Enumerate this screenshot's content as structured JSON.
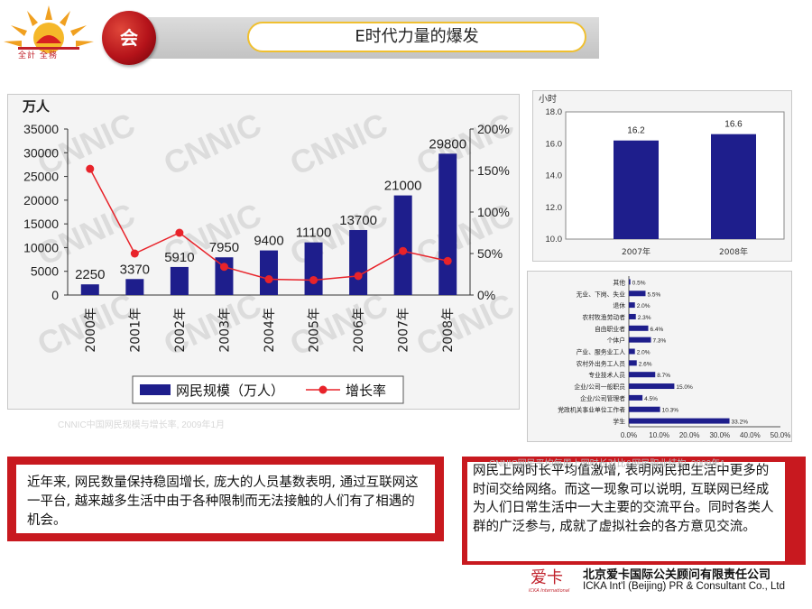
{
  "header": {
    "logo_text": "全計 全務",
    "circle_label": "会",
    "title": "E时代力量的爆发"
  },
  "captions": {
    "chart1": "CNNIC中国网民规模与增长率, 2009年1月",
    "chart23": "CNNIC网民平均每周上网时长对比&网民职业结构, 2009年1"
  },
  "text": {
    "left": "近年来, 网民数量保持稳固增长, 庞大的人员基数表明, 通过互联网这一平台, 越来越多生活中由于各种限制而无法接触的人们有了相遇的机会。",
    "right": "网民上网时长平均值激增, 表明网民把生活中更多的时间交给网络。而这一现象可以说明, 互联网已经成为人们日常生活中一大主要的交流平台。同时各类人群的广泛参与, 成就了虚拟社会的各方意见交流。"
  },
  "footer": {
    "company_cn": "北京爱卡国际公关顾问有限责任公司",
    "company_en": "ICKA Int'l (Beijing) PR & Consultant  Co., Ltd",
    "logo_text": "ICKA International",
    "logo_mark": "爱卡"
  },
  "colors": {
    "red": "#c8191f",
    "bar": "#1e1e8c",
    "line": "#e8232a",
    "gold": "#f0c030"
  },
  "chart_data": [
    {
      "type": "bar",
      "watermark": "CNNIC",
      "y_unit": "万人",
      "ylim": [
        0,
        35000
      ],
      "y_ticks": [
        "0",
        "5000",
        "10000",
        "15000",
        "20000",
        "25000",
        "30000",
        "35000"
      ],
      "y2_ticks": [
        "0%",
        "50%",
        "100%",
        "150%",
        "200%"
      ],
      "categories": [
        "2000年",
        "2001年",
        "2002年",
        "2003年",
        "2004年",
        "2005年",
        "2006年",
        "2007年",
        "2008年"
      ],
      "series": [
        {
          "name": "网民规模（万人）",
          "values": [
            2250,
            3370,
            5910,
            7950,
            9400,
            11100,
            13700,
            21000,
            29800
          ]
        },
        {
          "name": "增长率",
          "type": "line",
          "values": [
            152,
            50,
            75,
            34,
            19,
            18,
            23,
            53,
            41
          ]
        }
      ]
    },
    {
      "type": "bar",
      "y_unit": "小时",
      "ylim": [
        10,
        18
      ],
      "y_ticks": [
        "10.0",
        "12.0",
        "14.0",
        "16.0",
        "18.0"
      ],
      "categories": [
        "2007年",
        "2008年"
      ],
      "values": [
        16.2,
        16.6
      ],
      "labels": [
        "16.2",
        "16.6"
      ]
    },
    {
      "type": "bar",
      "orientation": "horizontal",
      "xlim": [
        0,
        50
      ],
      "x_ticks": [
        "0.0%",
        "10.0%",
        "20.0%",
        "30.0%",
        "40.0%",
        "50.0%"
      ],
      "categories": [
        "其他",
        "无业、下岗、失业",
        "退休",
        "农村牧渔劳动者",
        "自由职业者",
        "个体户",
        "产业、服务业工人",
        "农村外出务工人员",
        "专业技术人员",
        "企业/公司一般职员",
        "企业/公司管理者",
        "党政机关事业单位工作者",
        "学生"
      ],
      "values": [
        0.5,
        5.5,
        2.0,
        2.3,
        6.4,
        7.3,
        2.0,
        2.6,
        8.7,
        15.0,
        4.5,
        10.3,
        33.2
      ],
      "labels": [
        "0.5%",
        "5.5%",
        "2.0%",
        "2.3%",
        "6.4%",
        "7.3%",
        "2.0%",
        "2.6%",
        "8.7%",
        "15.0%",
        "4.5%",
        "10.3%",
        "33.2%"
      ]
    }
  ]
}
